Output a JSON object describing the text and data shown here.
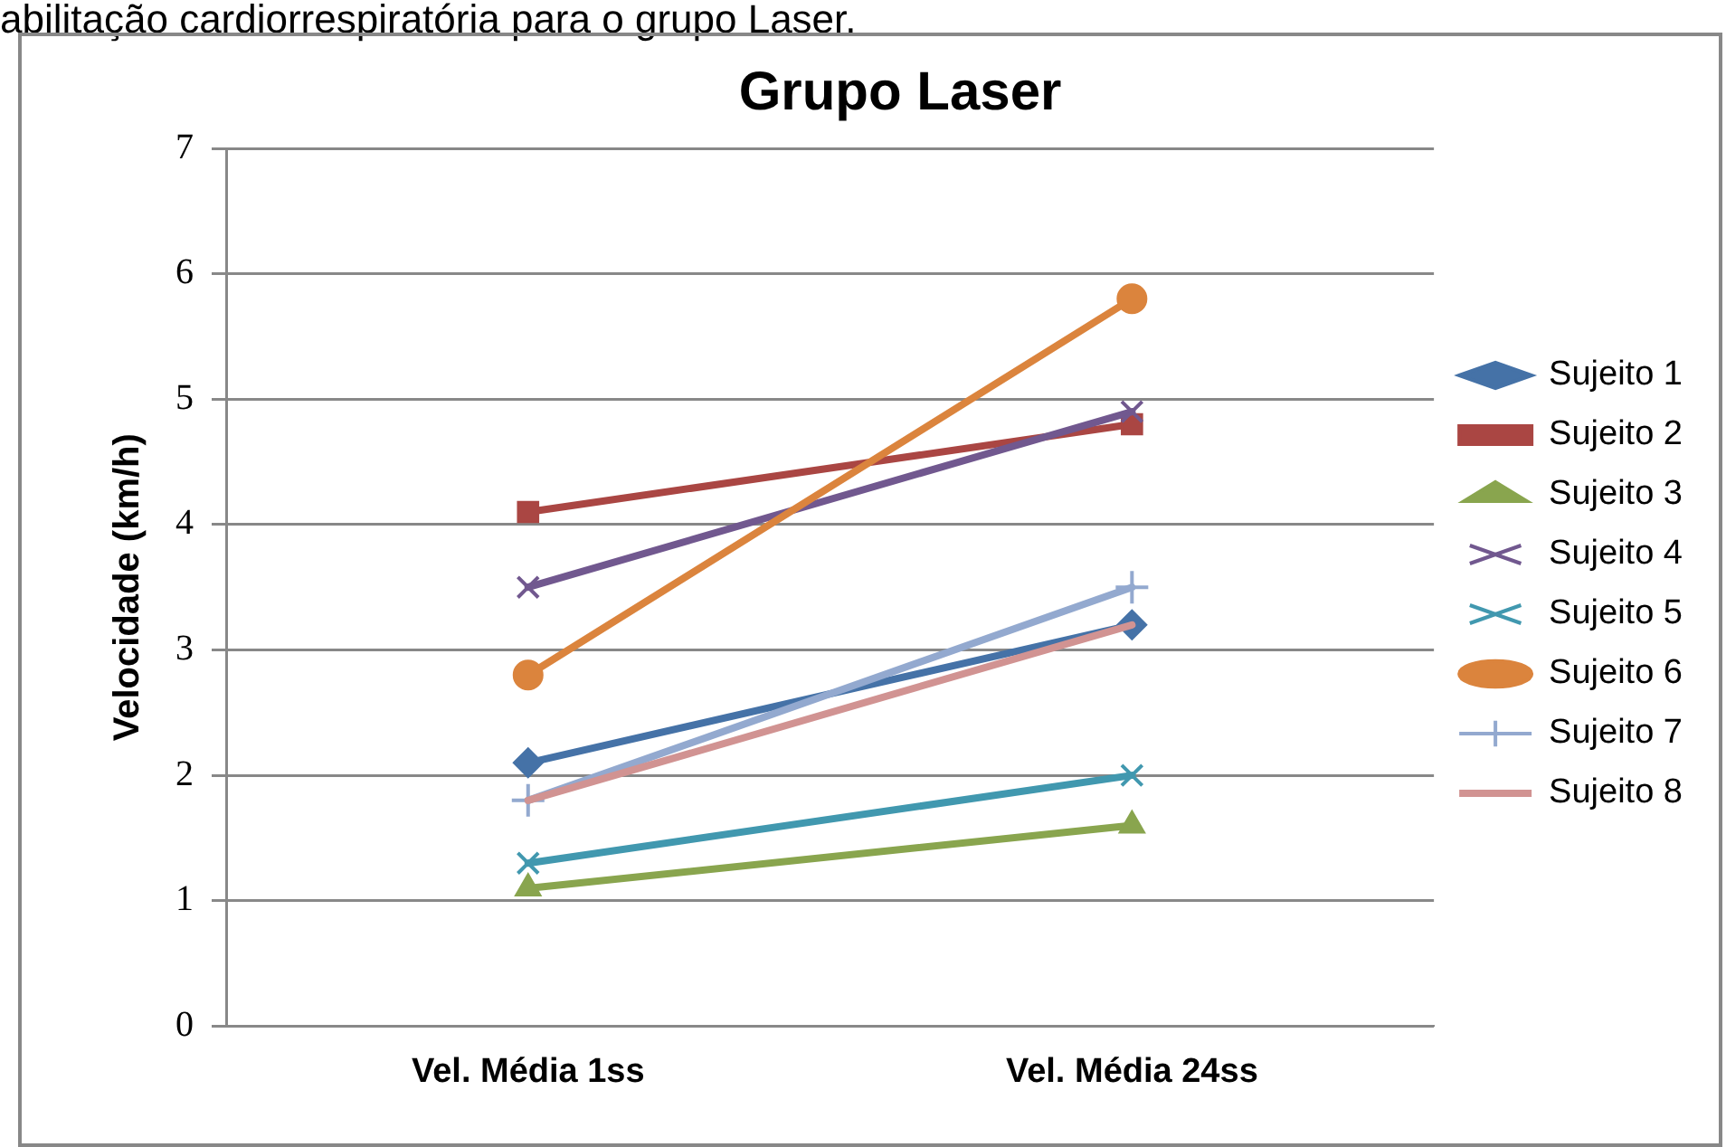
{
  "chart_data": {
    "type": "line",
    "title": "Grupo Laser",
    "ylabel": "Velocidade (km/h)",
    "annotations": [
      "abilitação cardiorrespiratória para o grupo Laser."
    ],
    "categories": [
      "Vel. Média 1ss",
      "Vel. Média 24ss"
    ],
    "ylim": [
      0,
      7
    ],
    "yticks": [
      0,
      1,
      2,
      3,
      4,
      5,
      6,
      7
    ],
    "grid": "y",
    "legend": "right",
    "series": [
      {
        "name": "Sujeito 1",
        "color": "#4572a7",
        "marker": "diamond",
        "values": [
          2.1,
          3.2
        ]
      },
      {
        "name": "Sujeito 2",
        "color": "#aa4643",
        "marker": "square",
        "values": [
          4.1,
          4.8
        ]
      },
      {
        "name": "Sujeito 3",
        "color": "#89a54e",
        "marker": "triangle",
        "values": [
          1.1,
          1.6
        ]
      },
      {
        "name": "Sujeito 4",
        "color": "#71588f",
        "marker": "cross",
        "values": [
          3.5,
          4.9
        ]
      },
      {
        "name": "Sujeito 5",
        "color": "#4198af",
        "marker": "cross",
        "values": [
          1.3,
          2.0
        ]
      },
      {
        "name": "Sujeito 6",
        "color": "#db843d",
        "marker": "circle",
        "values": [
          2.8,
          5.8
        ]
      },
      {
        "name": "Sujeito 7",
        "color": "#93a9cf",
        "marker": "plus",
        "values": [
          1.8,
          3.5
        ]
      },
      {
        "name": "Sujeito 8",
        "color": "#d19392",
        "marker": "none",
        "values": [
          1.8,
          3.2
        ]
      }
    ]
  }
}
